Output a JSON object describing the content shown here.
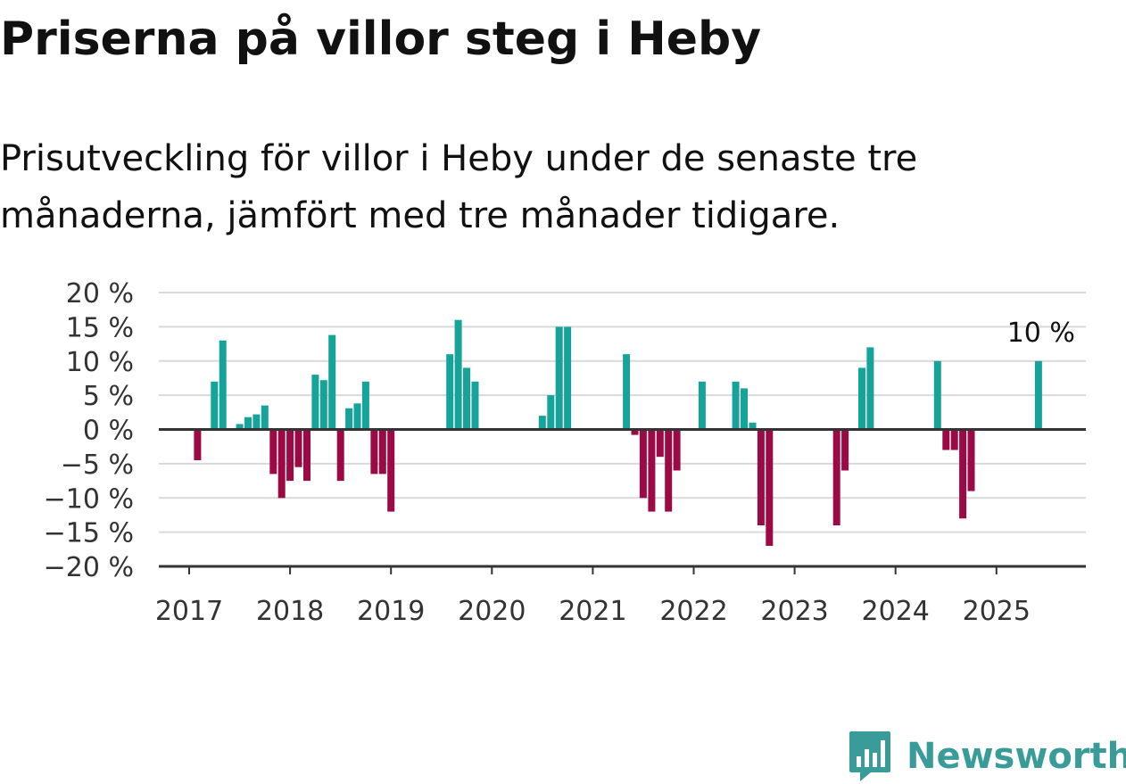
{
  "title": "Priserna på villor steg i Heby",
  "subtitle": "Prisutveckling för villor i Heby under de senaste tre månaderna, jämfört med tre månader tidigare.",
  "brand": "Newsworthy",
  "colors": {
    "positive": "#15a39a",
    "negative": "#9b0a45",
    "grid": "#d9d9d9",
    "axis": "#333333",
    "brand": "#3a9c98"
  },
  "chart_data": {
    "type": "bar",
    "title": "",
    "xlabel": "",
    "ylabel": "",
    "ylim": [
      -20,
      20
    ],
    "y_ticks": [
      20,
      15,
      10,
      5,
      0,
      -5,
      -10,
      -15,
      -20
    ],
    "y_tick_labels": [
      "20 %",
      "15 %",
      "10 %",
      "5 %",
      "0 %",
      "−5 %",
      "−10 %",
      "−15 %",
      "−20 %"
    ],
    "x_ticks": [
      "2017",
      "2018",
      "2019",
      "2020",
      "2021",
      "2022",
      "2023",
      "2024",
      "2025"
    ],
    "grid": true,
    "annotation": "10 %",
    "series": [
      {
        "x": [
          "2017-02",
          "2017-04",
          "2017-05",
          "2017-07",
          "2017-08",
          "2017-09",
          "2017-10",
          "2017-11",
          "2017-12",
          "2018-01",
          "2018-02",
          "2018-03",
          "2018-04",
          "2018-05",
          "2018-06",
          "2018-07",
          "2018-08",
          "2018-09",
          "2018-10",
          "2018-11",
          "2018-12",
          "2019-01",
          "2019-08",
          "2019-09",
          "2019-10",
          "2019-11",
          "2020-07",
          "2020-08",
          "2020-09",
          "2020-10",
          "2021-05",
          "2021-06",
          "2021-07",
          "2021-08",
          "2021-09",
          "2021-10",
          "2021-11",
          "2022-02",
          "2022-06",
          "2022-07",
          "2022-08",
          "2022-09",
          "2022-10",
          "2023-06",
          "2023-07",
          "2023-09",
          "2023-10",
          "2024-06",
          "2024-07",
          "2024-08",
          "2024-09",
          "2024-10",
          "2025-06"
        ],
        "values": [
          -4.5,
          7,
          13,
          0.8,
          1.8,
          2.2,
          3.5,
          -6.5,
          -10,
          -7.5,
          -5.5,
          -7.5,
          8,
          7.2,
          13.8,
          -7.5,
          3.1,
          3.8,
          7,
          -6.5,
          -6.5,
          -12,
          11,
          16,
          9,
          7,
          2,
          5,
          15,
          15,
          11,
          -0.8,
          -10,
          -12,
          -4,
          -12,
          -6,
          7,
          7,
          6,
          1,
          -14,
          -17,
          -14,
          -6,
          9,
          12,
          10,
          -3,
          -3,
          -13,
          -9,
          10
        ]
      }
    ]
  }
}
